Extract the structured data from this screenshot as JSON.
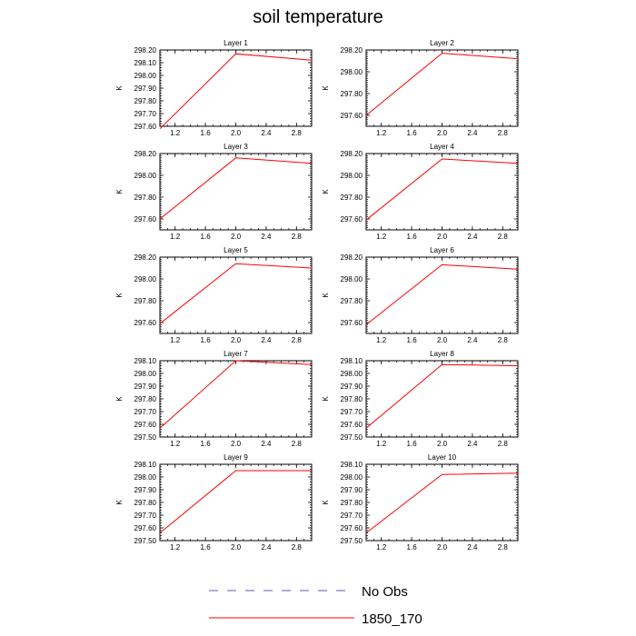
{
  "page_title": "soil temperature",
  "chart_data": [
    {
      "type": "line",
      "title": "Layer 1",
      "ylabel": "K",
      "xlim": [
        1.0,
        3.0
      ],
      "ylim": [
        297.6,
        298.2
      ],
      "xticks": [
        1.2,
        1.6,
        2.0,
        2.4,
        2.8
      ],
      "xtick_labels": [
        "1.2",
        "1.6",
        "2.0",
        "2.4",
        "2.8"
      ],
      "yticks": [
        297.6,
        297.7,
        297.8,
        297.9,
        298.0,
        298.1,
        298.2
      ],
      "ytick_labels": [
        "297.60",
        "297.70",
        "297.80",
        "297.90",
        "298.00",
        "298.10",
        "298.20"
      ],
      "series": [
        {
          "name": "1850_170",
          "color": "#ff0000",
          "x": [
            1.0,
            2.0,
            3.0
          ],
          "y": [
            297.58,
            298.17,
            298.12
          ]
        }
      ]
    },
    {
      "type": "line",
      "title": "Layer 2",
      "ylabel": "K",
      "xlim": [
        1.0,
        3.0
      ],
      "ylim": [
        297.5,
        298.2
      ],
      "xticks": [
        1.2,
        1.6,
        2.0,
        2.4,
        2.8
      ],
      "xtick_labels": [
        "1.2",
        "1.6",
        "2.0",
        "2.4",
        "2.8"
      ],
      "yticks": [
        297.6,
        297.8,
        298.0,
        298.2
      ],
      "ytick_labels": [
        "297.60",
        "297.80",
        "298.00",
        "298.20"
      ],
      "series": [
        {
          "name": "1850_170",
          "color": "#ff0000",
          "x": [
            1.0,
            2.0,
            3.0
          ],
          "y": [
            297.6,
            298.17,
            298.12
          ]
        }
      ]
    },
    {
      "type": "line",
      "title": "Layer 3",
      "ylabel": "K",
      "xlim": [
        1.0,
        3.0
      ],
      "ylim": [
        297.5,
        298.2
      ],
      "xticks": [
        1.2,
        1.6,
        2.0,
        2.4,
        2.8
      ],
      "xtick_labels": [
        "1.2",
        "1.6",
        "2.0",
        "2.4",
        "2.8"
      ],
      "yticks": [
        297.6,
        297.8,
        298.0,
        298.2
      ],
      "ytick_labels": [
        "297.60",
        "297.80",
        "298.00",
        "298.20"
      ],
      "series": [
        {
          "name": "1850_170",
          "color": "#ff0000",
          "x": [
            1.0,
            2.0,
            3.0
          ],
          "y": [
            297.6,
            298.16,
            298.11
          ]
        }
      ]
    },
    {
      "type": "line",
      "title": "Layer 4",
      "ylabel": "K",
      "xlim": [
        1.0,
        3.0
      ],
      "ylim": [
        297.5,
        298.2
      ],
      "xticks": [
        1.2,
        1.6,
        2.0,
        2.4,
        2.8
      ],
      "xtick_labels": [
        "1.2",
        "1.6",
        "2.0",
        "2.4",
        "2.8"
      ],
      "yticks": [
        297.6,
        297.8,
        298.0,
        298.2
      ],
      "ytick_labels": [
        "297.60",
        "297.80",
        "298.00",
        "298.20"
      ],
      "series": [
        {
          "name": "1850_170",
          "color": "#ff0000",
          "x": [
            1.0,
            2.0,
            3.0
          ],
          "y": [
            297.59,
            298.15,
            298.11
          ]
        }
      ]
    },
    {
      "type": "line",
      "title": "Layer 5",
      "ylabel": "K",
      "xlim": [
        1.0,
        3.0
      ],
      "ylim": [
        297.5,
        298.2
      ],
      "xticks": [
        1.2,
        1.6,
        2.0,
        2.4,
        2.8
      ],
      "xtick_labels": [
        "1.2",
        "1.6",
        "2.0",
        "2.4",
        "2.8"
      ],
      "yticks": [
        297.6,
        297.8,
        298.0,
        298.2
      ],
      "ytick_labels": [
        "297.60",
        "297.80",
        "298.00",
        "298.20"
      ],
      "series": [
        {
          "name": "1850_170",
          "color": "#ff0000",
          "x": [
            1.0,
            2.0,
            3.0
          ],
          "y": [
            297.59,
            298.14,
            298.1
          ]
        }
      ]
    },
    {
      "type": "line",
      "title": "Layer 6",
      "ylabel": "K",
      "xlim": [
        1.0,
        3.0
      ],
      "ylim": [
        297.5,
        298.2
      ],
      "xticks": [
        1.2,
        1.6,
        2.0,
        2.4,
        2.8
      ],
      "xtick_labels": [
        "1.2",
        "1.6",
        "2.0",
        "2.4",
        "2.8"
      ],
      "yticks": [
        297.6,
        297.8,
        298.0,
        298.2
      ],
      "ytick_labels": [
        "297.60",
        "297.80",
        "298.00",
        "298.20"
      ],
      "series": [
        {
          "name": "1850_170",
          "color": "#ff0000",
          "x": [
            1.0,
            2.0,
            3.0
          ],
          "y": [
            297.58,
            298.13,
            298.09
          ]
        }
      ]
    },
    {
      "type": "line",
      "title": "Layer 7",
      "ylabel": "K",
      "xlim": [
        1.0,
        3.0
      ],
      "ylim": [
        297.5,
        298.1
      ],
      "xticks": [
        1.2,
        1.6,
        2.0,
        2.4,
        2.8
      ],
      "xtick_labels": [
        "1.2",
        "1.6",
        "2.0",
        "2.4",
        "2.8"
      ],
      "yticks": [
        297.5,
        297.6,
        297.7,
        297.8,
        297.9,
        298.0,
        298.1
      ],
      "ytick_labels": [
        "297.50",
        "297.60",
        "297.70",
        "297.80",
        "297.90",
        "298.00",
        "298.10"
      ],
      "series": [
        {
          "name": "1850_170",
          "color": "#ff0000",
          "x": [
            1.0,
            2.0,
            3.0
          ],
          "y": [
            297.57,
            298.1,
            298.07
          ]
        }
      ]
    },
    {
      "type": "line",
      "title": "Layer 8",
      "ylabel": "K",
      "xlim": [
        1.0,
        3.0
      ],
      "ylim": [
        297.5,
        298.1
      ],
      "xticks": [
        1.2,
        1.6,
        2.0,
        2.4,
        2.8
      ],
      "xtick_labels": [
        "1.2",
        "1.6",
        "2.0",
        "2.4",
        "2.8"
      ],
      "yticks": [
        297.5,
        297.6,
        297.7,
        297.8,
        297.9,
        298.0,
        298.1
      ],
      "ytick_labels": [
        "297.50",
        "297.60",
        "297.70",
        "297.80",
        "297.90",
        "298.00",
        "298.10"
      ],
      "series": [
        {
          "name": "1850_170",
          "color": "#ff0000",
          "x": [
            1.0,
            2.0,
            3.0
          ],
          "y": [
            297.57,
            298.07,
            298.06
          ]
        }
      ]
    },
    {
      "type": "line",
      "title": "Layer 9",
      "ylabel": "K",
      "xlim": [
        1.0,
        3.0
      ],
      "ylim": [
        297.5,
        298.1
      ],
      "xticks": [
        1.2,
        1.6,
        2.0,
        2.4,
        2.8
      ],
      "xtick_labels": [
        "1.2",
        "1.6",
        "2.0",
        "2.4",
        "2.8"
      ],
      "yticks": [
        297.5,
        297.6,
        297.7,
        297.8,
        297.9,
        298.0,
        298.1
      ],
      "ytick_labels": [
        "297.50",
        "297.60",
        "297.70",
        "297.80",
        "297.90",
        "298.00",
        "298.10"
      ],
      "series": [
        {
          "name": "1850_170",
          "color": "#ff0000",
          "x": [
            1.0,
            2.0,
            3.0
          ],
          "y": [
            297.56,
            298.05,
            298.05
          ]
        }
      ]
    },
    {
      "type": "line",
      "title": "Layer 10",
      "ylabel": "K",
      "xlim": [
        1.0,
        3.0
      ],
      "ylim": [
        297.5,
        298.1
      ],
      "xticks": [
        1.2,
        1.6,
        2.0,
        2.4,
        2.8
      ],
      "xtick_labels": [
        "1.2",
        "1.6",
        "2.0",
        "2.4",
        "2.8"
      ],
      "yticks": [
        297.5,
        297.6,
        297.7,
        297.8,
        297.9,
        298.0,
        298.1
      ],
      "ytick_labels": [
        "297.50",
        "297.60",
        "297.70",
        "297.80",
        "297.90",
        "298.00",
        "298.10"
      ],
      "series": [
        {
          "name": "1850_170",
          "color": "#ff0000",
          "x": [
            1.0,
            2.0,
            3.0
          ],
          "y": [
            297.56,
            298.02,
            298.03
          ]
        }
      ]
    }
  ],
  "legend": {
    "items": [
      {
        "label": "No Obs",
        "color": "#5a5ab4",
        "dash": true
      },
      {
        "label": "1850_170",
        "color": "#ff0000",
        "dash": false
      }
    ]
  }
}
